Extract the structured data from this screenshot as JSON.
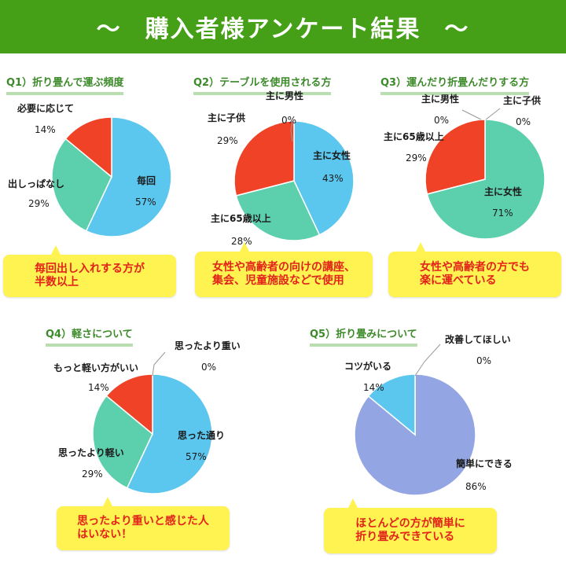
{
  "title": "購入者様アンケート結果",
  "title_decor": "～",
  "colors": {
    "banner": "#45a017",
    "blue": "#5bc6ee",
    "green": "#5ccfac",
    "red": "#ef4226",
    "lavender": "#94a5e3",
    "note_bg": "#fef351",
    "note_text": "#e2231a"
  },
  "questions": [
    {
      "title": "Q1）折り畳んで運ぶ頻度",
      "labels": {
        "a": "毎回",
        "b": "出しっぱなし",
        "c": "必要に応じて"
      },
      "pcts": {
        "a": "57%",
        "b": "29%",
        "c": "14%"
      },
      "note": "毎回出し入れする方が\n半数以上"
    },
    {
      "title": "Q2）テーブルを使用される方",
      "labels": {
        "a": "主に女性",
        "b": "主に65歳以上",
        "c": "主に子供",
        "d": "主に男性"
      },
      "pcts": {
        "a": "43%",
        "b": "28%",
        "c": "29%",
        "d": "0%"
      },
      "note": "女性や高齢者の向けの講座、\n集会、児童施設などで使用"
    },
    {
      "title": "Q3）運んだり折畳んだりする方",
      "labels": {
        "a": "主に女性",
        "b": "主に65歳以上",
        "c": "主に男性",
        "d": "主に子供"
      },
      "pcts": {
        "a": "71%",
        "b": "29%",
        "c": "0%",
        "d": "0%"
      },
      "note": "女性や高齢者の方でも\n楽に運べている"
    },
    {
      "title": "Q4）軽さについて",
      "labels": {
        "a": "思った通り",
        "b": "思ったより軽い",
        "c": "もっと軽い方がいい",
        "d": "思ったより重い"
      },
      "pcts": {
        "a": "57%",
        "b": "29%",
        "c": "14%",
        "d": "0%"
      },
      "note": "思ったより重いと感じた人\nはいない！"
    },
    {
      "title": "Q5）折り畳みについて",
      "labels": {
        "a": "簡単にできる",
        "b": "コツがいる",
        "c": "改善してほしい"
      },
      "pcts": {
        "a": "86%",
        "b": "14%",
        "c": "0%"
      },
      "note": "ほとんどの方が簡単に\n折り畳みできている"
    }
  ],
  "chart_data": [
    {
      "type": "pie",
      "title": "Q1）折り畳んで運ぶ頻度",
      "categories": [
        "毎回",
        "出しっぱなし",
        "必要に応じて"
      ],
      "values": [
        57,
        29,
        14
      ],
      "colors": [
        "#5bc6ee",
        "#5ccfac",
        "#ef4226"
      ]
    },
    {
      "type": "pie",
      "title": "Q2）テーブルを使用される方",
      "categories": [
        "主に女性",
        "主に65歳以上",
        "主に子供",
        "主に男性"
      ],
      "values": [
        43,
        28,
        29,
        0
      ],
      "colors": [
        "#5bc6ee",
        "#5ccfac",
        "#ef4226",
        "#ffffff"
      ]
    },
    {
      "type": "pie",
      "title": "Q3）運んだり折畳んだりする方",
      "categories": [
        "主に女性",
        "主に65歳以上",
        "主に男性",
        "主に子供"
      ],
      "values": [
        71,
        29,
        0,
        0
      ],
      "colors": [
        "#5ccfac",
        "#ef4226",
        "#ffffff",
        "#ffffff"
      ]
    },
    {
      "type": "pie",
      "title": "Q4）軽さについて",
      "categories": [
        "思った通り",
        "思ったより軽い",
        "もっと軽い方がいい",
        "思ったより重い"
      ],
      "values": [
        57,
        29,
        14,
        0
      ],
      "colors": [
        "#5bc6ee",
        "#5ccfac",
        "#ef4226",
        "#ffffff"
      ]
    },
    {
      "type": "pie",
      "title": "Q5）折り畳みについて",
      "categories": [
        "簡単にできる",
        "コツがいる",
        "改善してほしい"
      ],
      "values": [
        86,
        14,
        0
      ],
      "colors": [
        "#94a5e3",
        "#5bc6ee",
        "#ffffff"
      ]
    }
  ]
}
